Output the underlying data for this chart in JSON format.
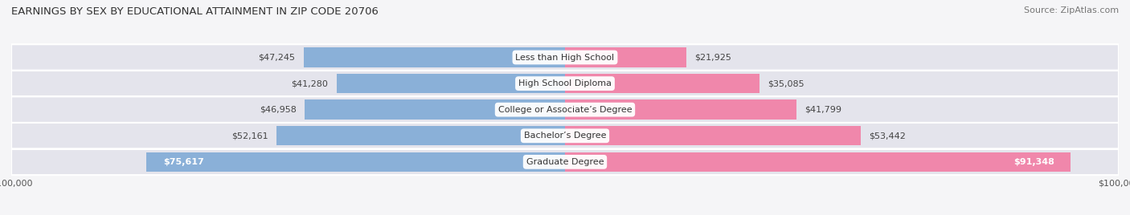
{
  "title": "EARNINGS BY SEX BY EDUCATIONAL ATTAINMENT IN ZIP CODE 20706",
  "source": "Source: ZipAtlas.com",
  "categories": [
    "Less than High School",
    "High School Diploma",
    "College or Associate’s Degree",
    "Bachelor’s Degree",
    "Graduate Degree"
  ],
  "male_values": [
    47245,
    41280,
    46958,
    52161,
    75617
  ],
  "female_values": [
    21925,
    35085,
    41799,
    53442,
    91348
  ],
  "male_color": "#8ab0d8",
  "female_color": "#f087ab",
  "max_val": 100000,
  "row_light_color": "#e8e8ee",
  "row_dark_color": "#dcdce6",
  "fig_bg": "#f5f5f7",
  "title_fontsize": 9.5,
  "source_fontsize": 8,
  "bar_label_fontsize": 8,
  "cat_label_fontsize": 8,
  "axis_label_fontsize": 8,
  "inside_label_threshold": 65000
}
